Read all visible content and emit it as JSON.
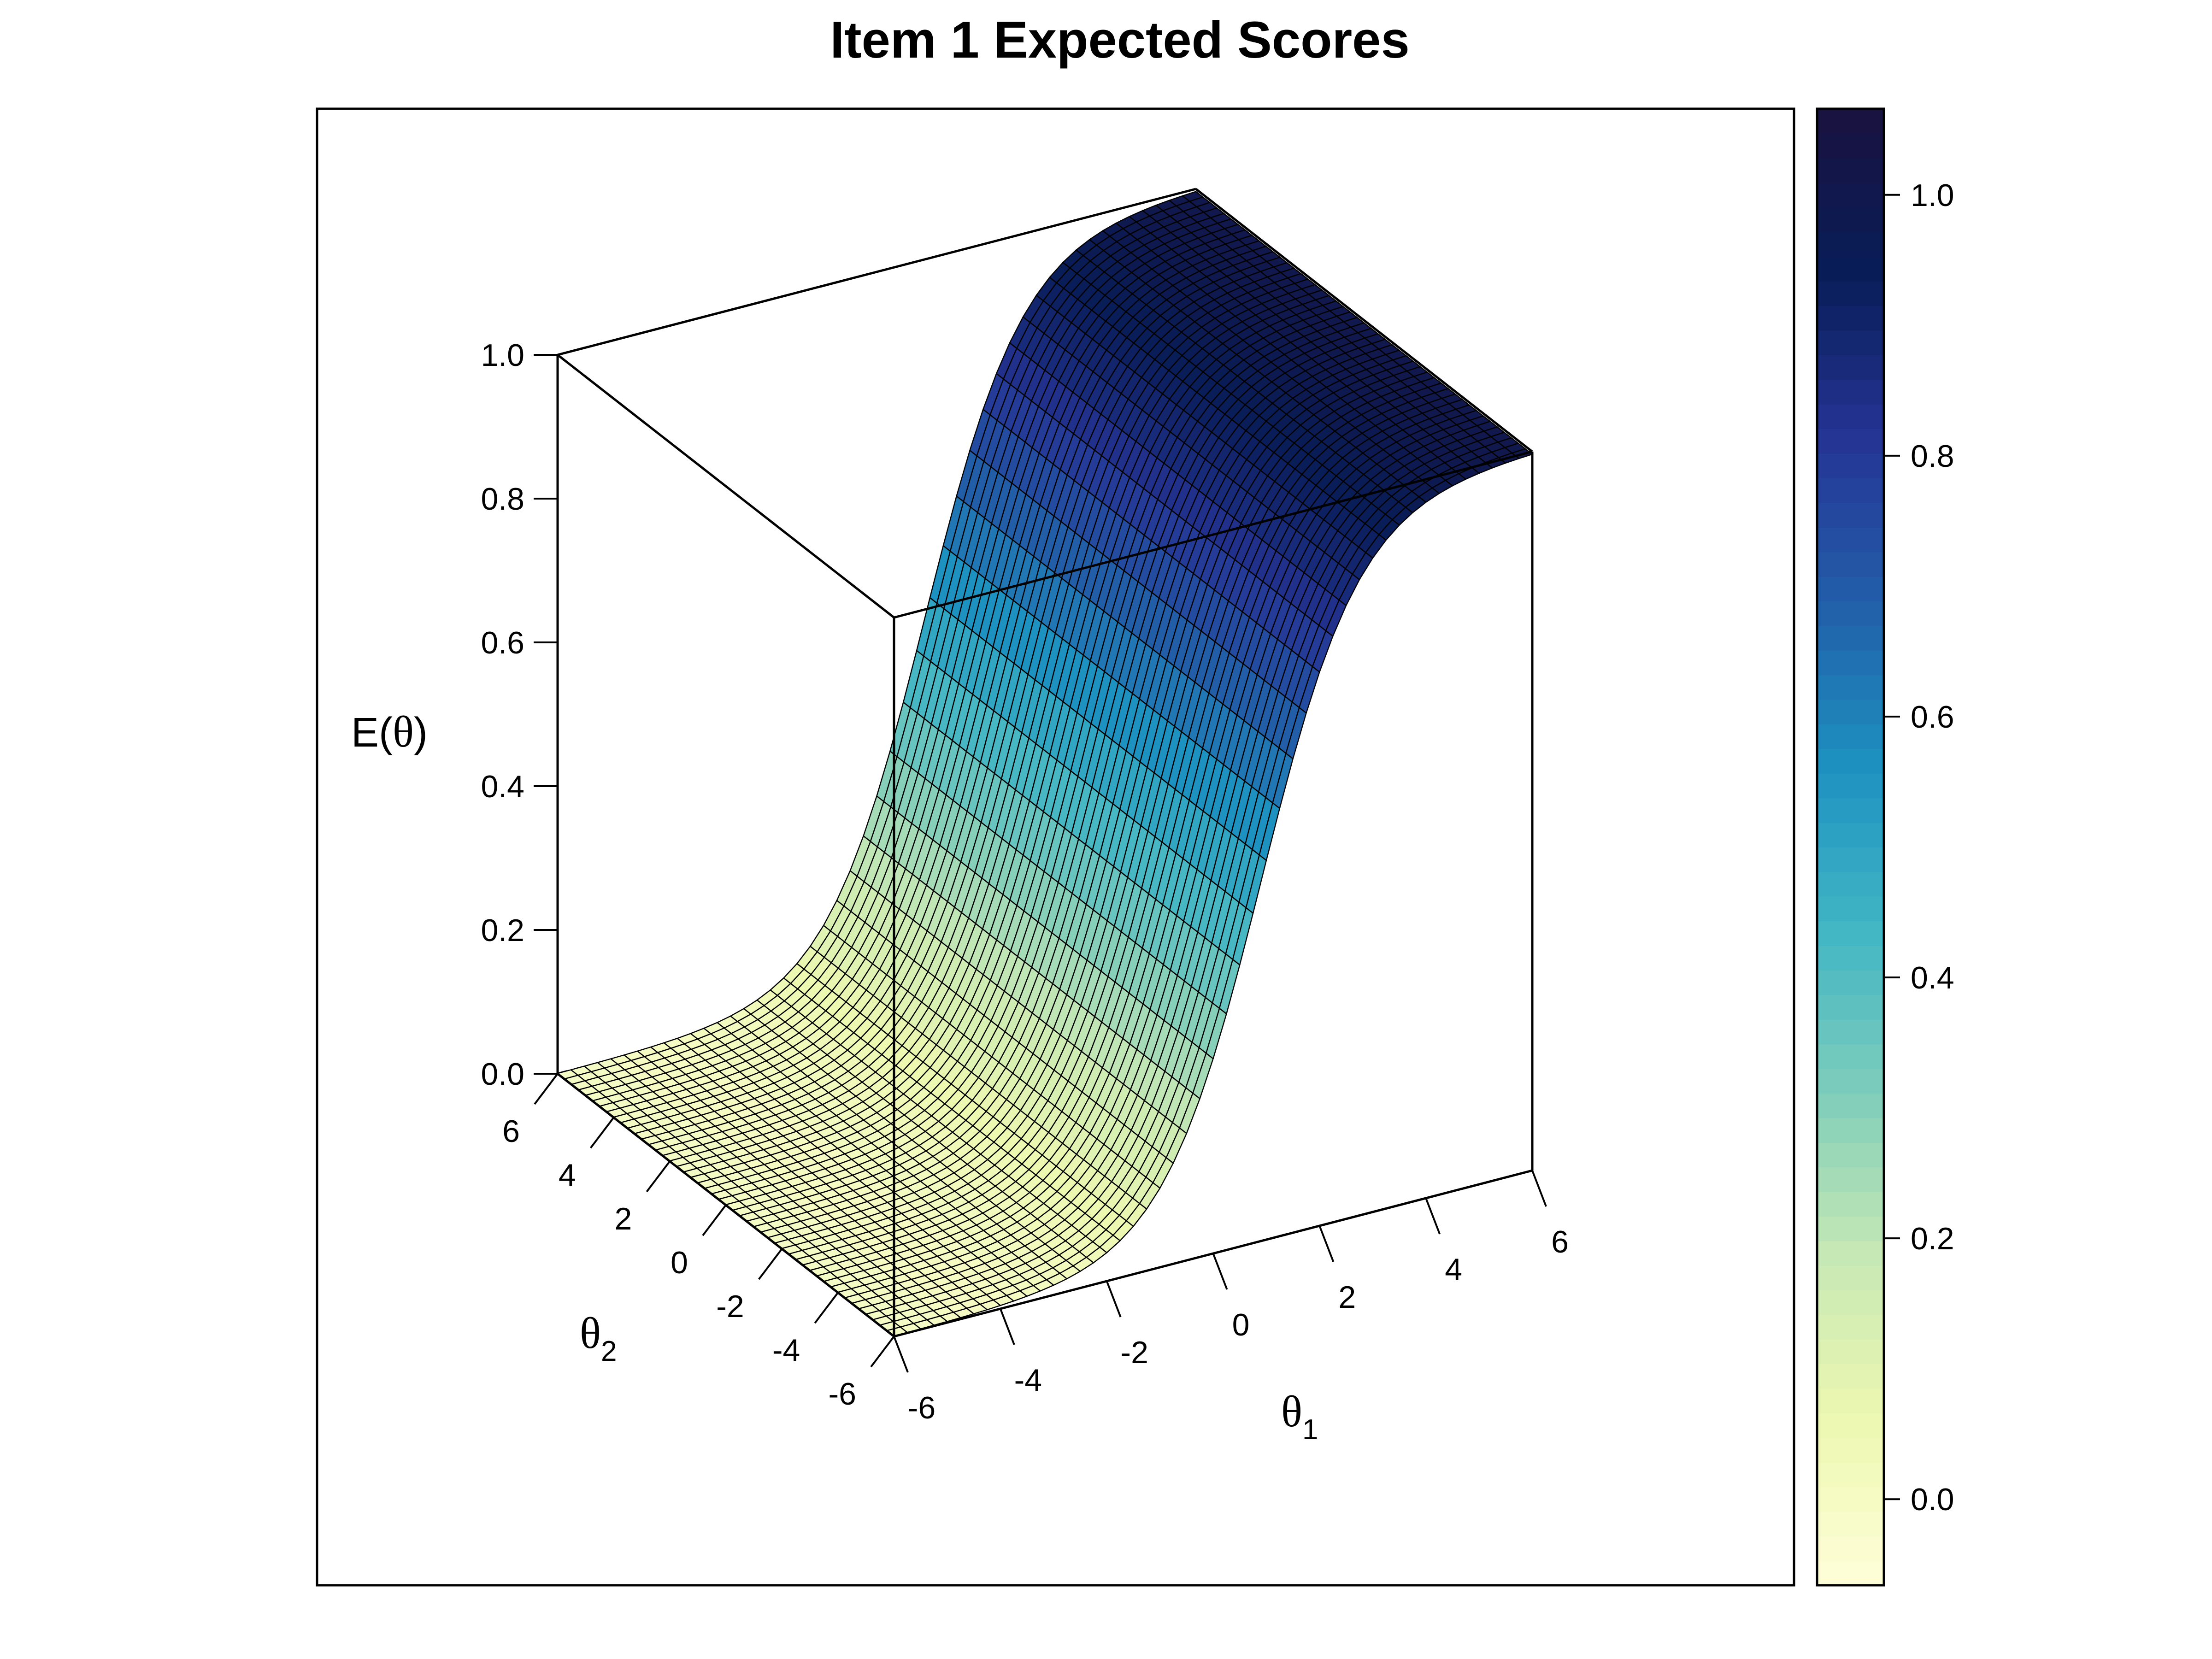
{
  "chart_data": {
    "type": "surface3d",
    "title": "Item 1 Expected Scores",
    "xlabel": "θ",
    "xlabel_sub": "1",
    "ylabel": "θ",
    "ylabel_sub": "2",
    "zlabel_prefix": "E(",
    "zlabel_theta": "θ",
    "zlabel_suffix": ")",
    "x_ticks": [
      "-6",
      "-4",
      "-2",
      "0",
      "2",
      "4",
      "6"
    ],
    "y_ticks": [
      "-6",
      "-4",
      "-2",
      "0",
      "2",
      "4",
      "6"
    ],
    "z_ticks": [
      "0.0",
      "0.2",
      "0.4",
      "0.6",
      "0.8",
      "1.0"
    ],
    "xlim": [
      -6,
      6
    ],
    "ylim": [
      -6,
      6
    ],
    "zlim": [
      0,
      1
    ],
    "surface": {
      "function": "logistic in theta1",
      "slope": 1.1,
      "location": 0.9,
      "grid_n": 49,
      "sample": [
        {
          "theta1": -6,
          "E": 0.0
        },
        {
          "theta1": -4,
          "E": 0.0
        },
        {
          "theta1": -2,
          "E": 0.04
        },
        {
          "theta1": 0,
          "E": 0.27
        },
        {
          "theta1": 2,
          "E": 0.77
        },
        {
          "theta1": 4,
          "E": 0.97
        },
        {
          "theta1": 6,
          "E": 1.0
        }
      ]
    },
    "colorkey": {
      "ticks": [
        "0.0",
        "0.2",
        "0.4",
        "0.6",
        "0.8",
        "1.0"
      ],
      "range": [
        -0.066,
        1.066
      ],
      "palette": "YlGnBu",
      "colors": [
        "#ffffd9",
        "#edf8b1",
        "#c7e9b4",
        "#7fcdbb",
        "#41b6c4",
        "#1d91c0",
        "#225ea8",
        "#253494",
        "#081d58",
        "#1a1240"
      ]
    },
    "grid": false,
    "legend": "right"
  }
}
